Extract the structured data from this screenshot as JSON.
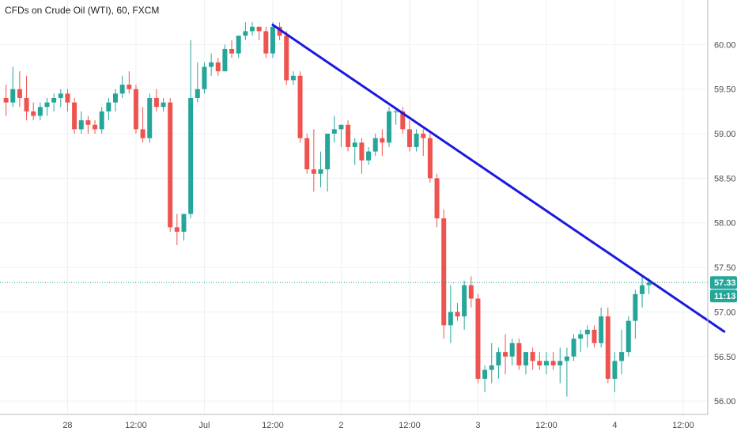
{
  "chart_data": {
    "type": "candlestick",
    "title": "CFDs on Crude Oil (WTI), 60, FXCM",
    "ylim": [
      55.85,
      60.5
    ],
    "y_ticks": [
      56.0,
      56.5,
      57.0,
      57.5,
      58.0,
      58.5,
      59.0,
      59.5,
      60.0
    ],
    "y_tick_labels": [
      "56.00",
      "56.50",
      "57.00",
      "57.50",
      "58.00",
      "58.50",
      "59.00",
      "59.50",
      "60.00"
    ],
    "x_ticks": [
      {
        "label": "28",
        "pos": 9
      },
      {
        "label": "12:00",
        "pos": 19
      },
      {
        "label": "Jul",
        "pos": 29
      },
      {
        "label": "12:00",
        "pos": 39
      },
      {
        "label": "2",
        "pos": 49
      },
      {
        "label": "12:00",
        "pos": 59
      },
      {
        "label": "3",
        "pos": 69
      },
      {
        "label": "12:00",
        "pos": 79
      },
      {
        "label": "4",
        "pos": 89
      },
      {
        "label": "12:00",
        "pos": 99
      }
    ],
    "candles": [
      [
        59.4,
        59.55,
        59.2,
        59.35
      ],
      [
        59.35,
        59.75,
        59.3,
        59.5
      ],
      [
        59.5,
        59.7,
        59.3,
        59.4
      ],
      [
        59.4,
        59.65,
        59.15,
        59.25
      ],
      [
        59.25,
        59.35,
        59.15,
        59.2
      ],
      [
        59.2,
        59.35,
        59.15,
        59.3
      ],
      [
        59.3,
        59.4,
        59.2,
        59.35
      ],
      [
        59.35,
        59.45,
        59.25,
        59.4
      ],
      [
        59.4,
        59.5,
        59.3,
        59.45
      ],
      [
        59.45,
        59.5,
        59.25,
        59.35
      ],
      [
        59.35,
        59.4,
        59.0,
        59.05
      ],
      [
        59.05,
        59.25,
        59.0,
        59.15
      ],
      [
        59.15,
        59.2,
        59.0,
        59.1
      ],
      [
        59.1,
        59.15,
        59.0,
        59.05
      ],
      [
        59.05,
        59.3,
        59.0,
        59.25
      ],
      [
        59.25,
        59.4,
        59.15,
        59.35
      ],
      [
        59.35,
        59.5,
        59.25,
        59.45
      ],
      [
        59.45,
        59.65,
        59.4,
        59.55
      ],
      [
        59.55,
        59.7,
        59.45,
        59.5
      ],
      [
        59.5,
        59.55,
        59.0,
        59.05
      ],
      [
        59.05,
        59.3,
        58.9,
        58.95
      ],
      [
        58.95,
        59.45,
        58.9,
        59.4
      ],
      [
        59.4,
        59.5,
        59.25,
        59.3
      ],
      [
        59.3,
        59.4,
        59.25,
        59.35
      ],
      [
        59.35,
        59.4,
        57.9,
        57.95
      ],
      [
        57.95,
        58.1,
        57.75,
        57.9
      ],
      [
        57.9,
        58.1,
        57.8,
        58.1
      ],
      [
        58.1,
        60.05,
        58.05,
        59.4
      ],
      [
        59.4,
        59.8,
        59.35,
        59.5
      ],
      [
        59.5,
        59.8,
        59.45,
        59.75
      ],
      [
        59.75,
        59.9,
        59.65,
        59.8
      ],
      [
        59.8,
        59.85,
        59.65,
        59.7
      ],
      [
        59.7,
        60.0,
        59.7,
        59.95
      ],
      [
        59.95,
        60.05,
        59.85,
        59.9
      ],
      [
        59.9,
        60.1,
        59.85,
        60.1
      ],
      [
        60.1,
        60.25,
        60.05,
        60.15
      ],
      [
        60.15,
        60.25,
        60.1,
        60.2
      ],
      [
        60.2,
        60.2,
        60.05,
        60.15
      ],
      [
        60.15,
        60.2,
        59.85,
        59.9
      ],
      [
        59.9,
        60.25,
        59.85,
        60.2
      ],
      [
        60.2,
        60.25,
        60.05,
        60.1
      ],
      [
        60.1,
        60.15,
        59.55,
        59.6
      ],
      [
        59.6,
        59.7,
        59.55,
        59.65
      ],
      [
        59.65,
        59.7,
        58.9,
        58.95
      ],
      [
        58.95,
        59.0,
        58.55,
        58.6
      ],
      [
        58.6,
        59.05,
        58.35,
        58.55
      ],
      [
        58.55,
        58.8,
        58.4,
        58.6
      ],
      [
        58.6,
        59.0,
        58.35,
        59.0
      ],
      [
        59.0,
        59.2,
        58.9,
        59.05
      ],
      [
        59.05,
        59.1,
        58.85,
        59.1
      ],
      [
        59.1,
        59.15,
        58.8,
        58.85
      ],
      [
        58.85,
        58.95,
        58.65,
        58.9
      ],
      [
        58.9,
        58.95,
        58.55,
        58.7
      ],
      [
        58.7,
        58.85,
        58.65,
        58.8
      ],
      [
        58.8,
        59.0,
        58.75,
        58.95
      ],
      [
        58.95,
        59.05,
        58.75,
        58.9
      ],
      [
        58.9,
        59.3,
        58.85,
        59.25
      ],
      [
        59.25,
        59.3,
        59.1,
        59.25
      ],
      [
        59.25,
        59.3,
        59.0,
        59.05
      ],
      [
        59.05,
        59.15,
        58.8,
        58.85
      ],
      [
        58.85,
        59.05,
        58.8,
        59.0
      ],
      [
        59.0,
        59.05,
        58.75,
        58.95
      ],
      [
        58.95,
        59.0,
        58.45,
        58.5
      ],
      [
        58.5,
        58.55,
        57.95,
        58.05
      ],
      [
        58.05,
        58.15,
        56.7,
        56.85
      ],
      [
        56.85,
        57.3,
        56.65,
        57.0
      ],
      [
        57.0,
        57.1,
        56.9,
        56.95
      ],
      [
        56.95,
        57.35,
        56.8,
        57.3
      ],
      [
        57.3,
        57.4,
        57.05,
        57.15
      ],
      [
        57.15,
        57.2,
        56.2,
        56.25
      ],
      [
        56.25,
        56.4,
        56.1,
        56.35
      ],
      [
        56.35,
        56.65,
        56.2,
        56.4
      ],
      [
        56.4,
        56.6,
        56.25,
        56.55
      ],
      [
        56.55,
        56.75,
        56.3,
        56.5
      ],
      [
        56.5,
        56.7,
        56.4,
        56.65
      ],
      [
        56.65,
        56.7,
        56.35,
        56.4
      ],
      [
        56.4,
        56.55,
        56.3,
        56.55
      ],
      [
        56.55,
        56.6,
        56.35,
        56.45
      ],
      [
        56.45,
        56.55,
        56.35,
        56.4
      ],
      [
        56.4,
        56.55,
        56.3,
        56.45
      ],
      [
        56.45,
        56.55,
        56.35,
        56.4
      ],
      [
        56.4,
        56.6,
        56.2,
        56.45
      ],
      [
        56.45,
        56.6,
        56.05,
        56.5
      ],
      [
        56.5,
        56.75,
        56.45,
        56.7
      ],
      [
        56.7,
        56.8,
        56.55,
        56.75
      ],
      [
        56.75,
        56.85,
        56.6,
        56.8
      ],
      [
        56.8,
        56.85,
        56.6,
        56.65
      ],
      [
        56.65,
        57.05,
        56.6,
        56.95
      ],
      [
        56.95,
        57.05,
        56.2,
        56.25
      ],
      [
        56.25,
        56.55,
        56.1,
        56.45
      ],
      [
        56.45,
        56.8,
        56.3,
        56.55
      ],
      [
        56.55,
        56.95,
        56.5,
        56.9
      ],
      [
        56.9,
        57.25,
        56.7,
        57.2
      ],
      [
        57.2,
        57.4,
        57.05,
        57.3
      ],
      [
        57.3,
        57.38,
        57.2,
        57.33
      ]
    ],
    "trendline": {
      "from": {
        "x": 39,
        "y": 60.22
      },
      "to": {
        "x": 105,
        "y": 56.78
      },
      "color": "#1a1adf"
    },
    "last_price": {
      "value": 57.33,
      "label": "57.33"
    },
    "countdown_label": "11:13",
    "up_color": "#26a69a",
    "down_color": "#ef5350",
    "last_price_color": "#26a69a"
  }
}
